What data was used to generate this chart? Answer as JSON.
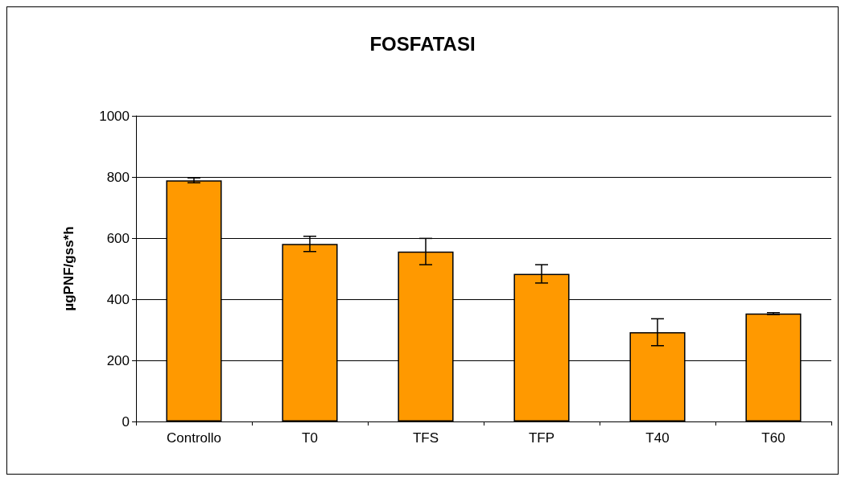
{
  "chart_data": {
    "type": "bar",
    "title": "FOSFATASI",
    "ylabel": "µgPNF/gss*h",
    "categories": [
      "Controllo",
      "T0",
      "TFS",
      "TFP",
      "T40",
      "T60"
    ],
    "values": [
      789,
      581,
      556,
      483,
      292,
      353
    ],
    "errors": [
      8,
      25,
      43,
      30,
      44,
      3
    ],
    "color": "#ff9900",
    "ylim": [
      0,
      1000
    ],
    "yticks": [
      0,
      200,
      400,
      600,
      800,
      1000
    ],
    "grid": "y"
  }
}
